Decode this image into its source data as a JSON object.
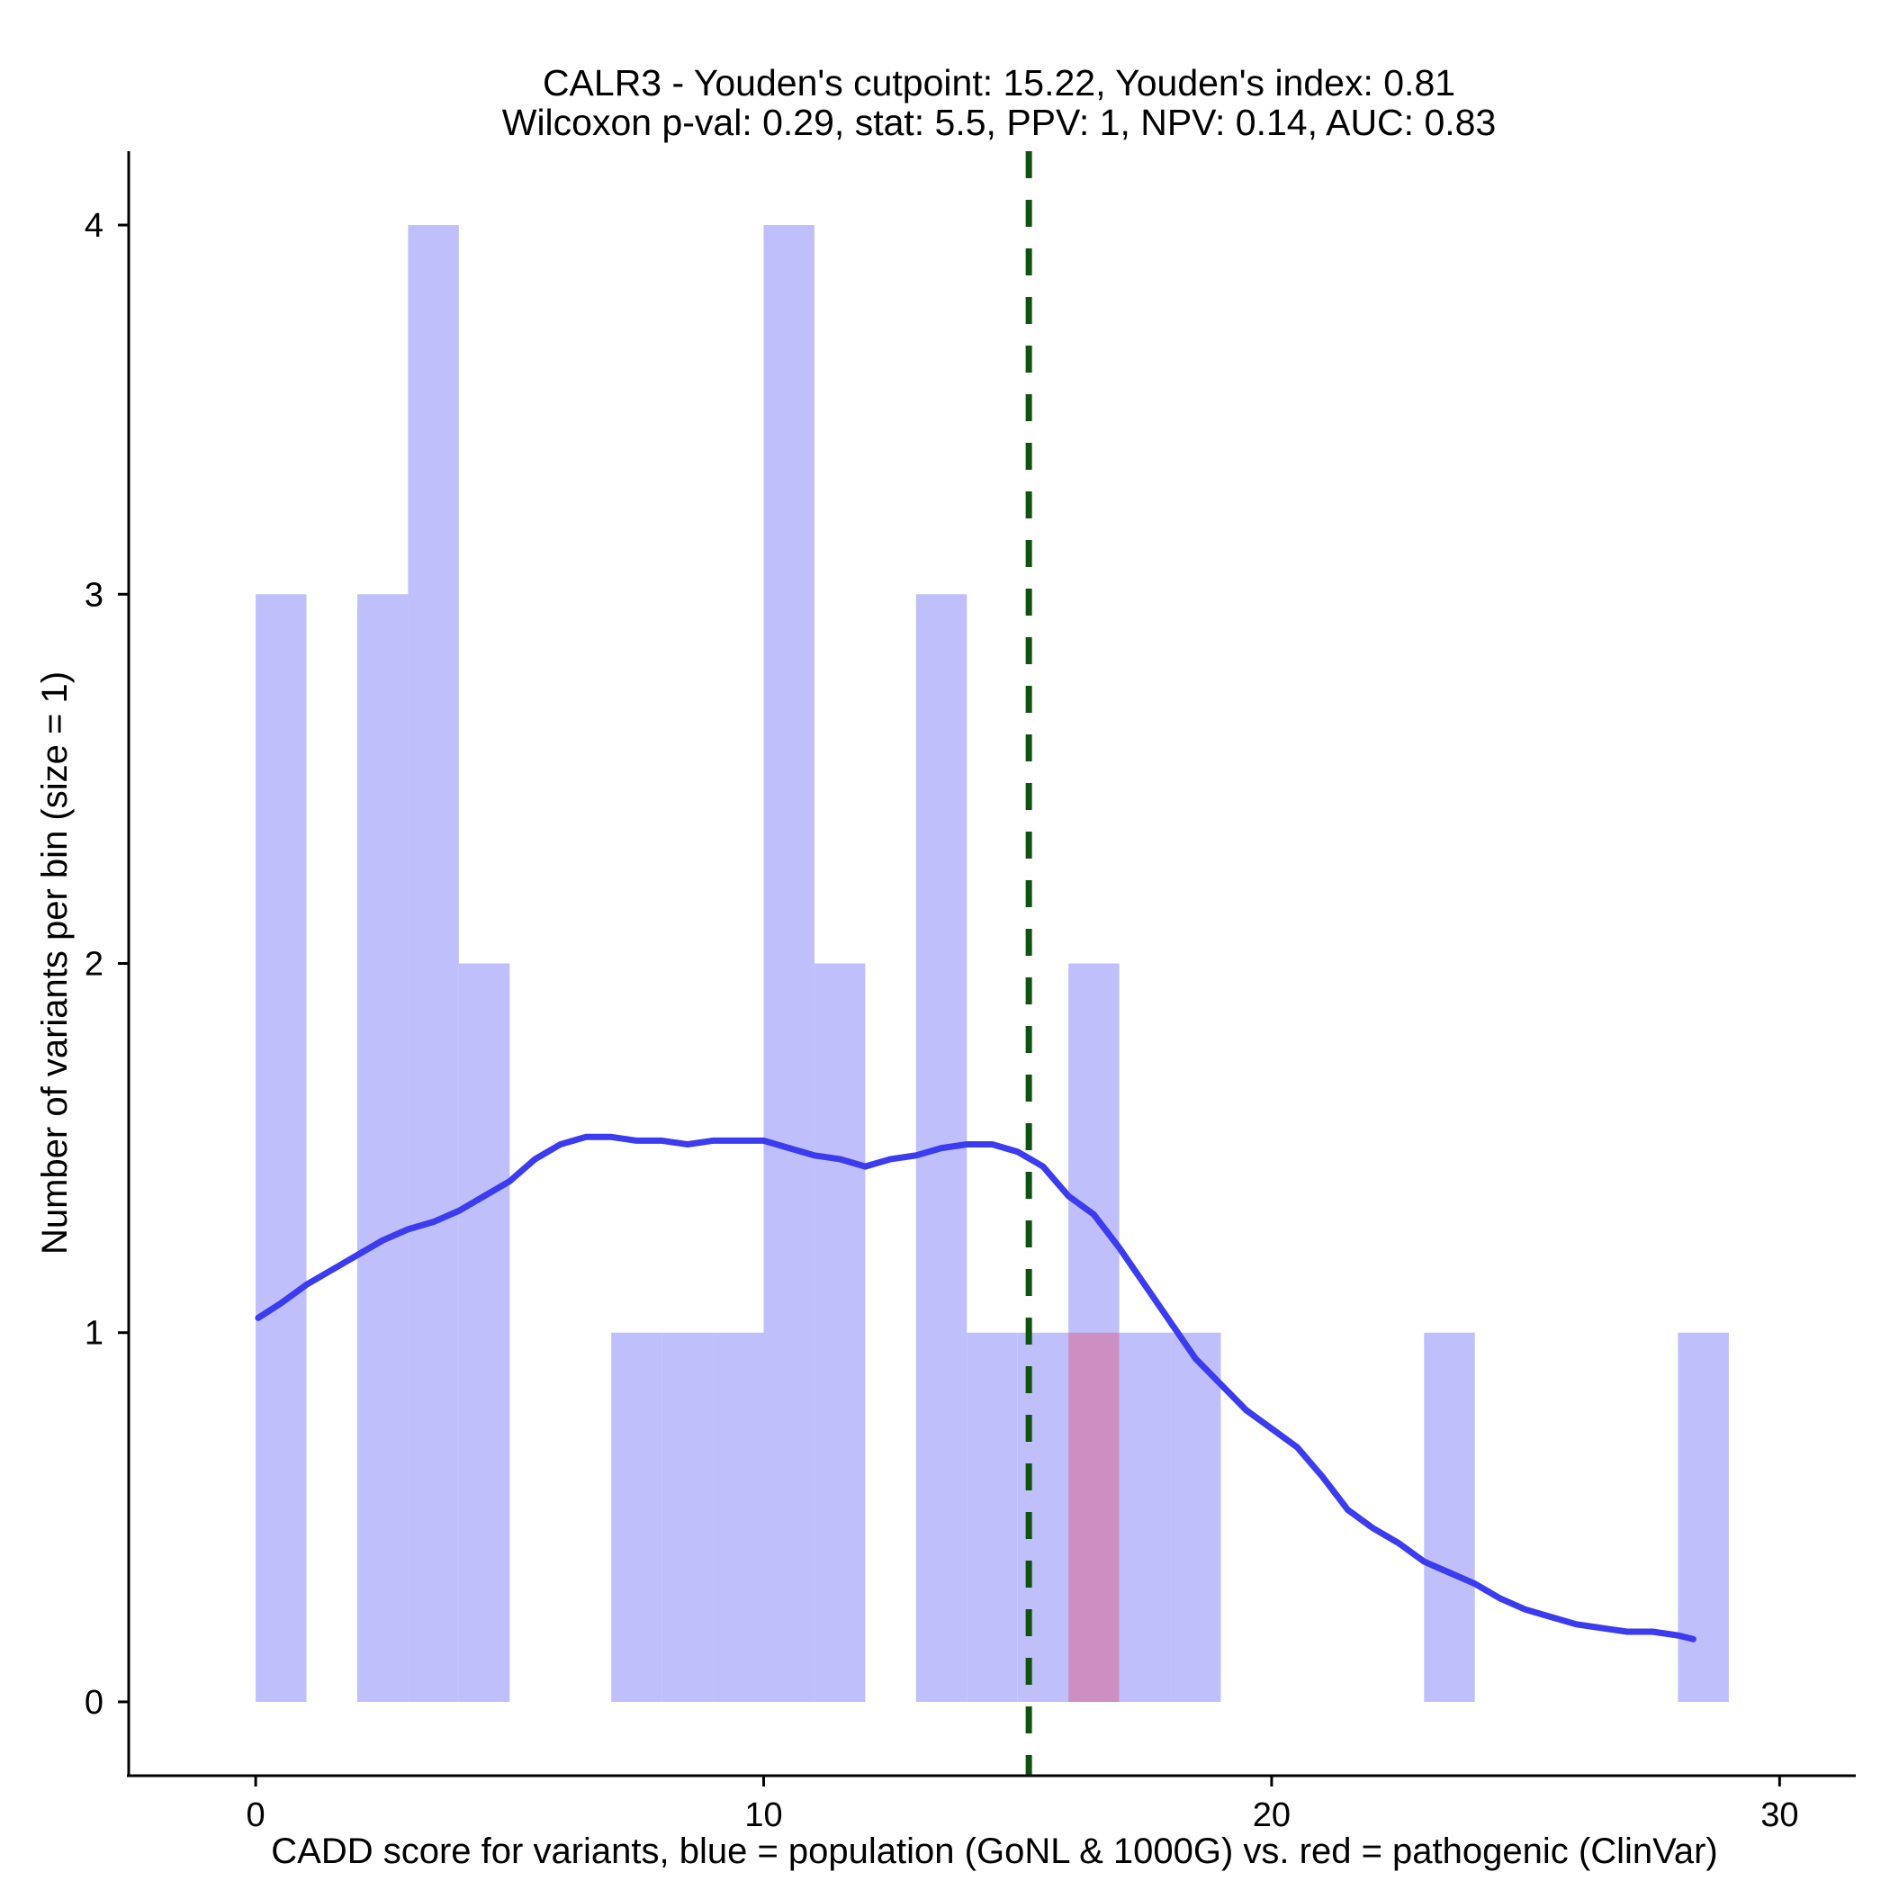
{
  "chart_data": {
    "type": "bar",
    "title_lines": [
      "CALR3 - Youden's cutpoint: 15.22, Youden's index: 0.81",
      "Wilcoxon p-val: 0.29, stat: 5.5, PPV: 1, NPV: 0.14, AUC: 0.83"
    ],
    "xlabel": "CADD score for variants, blue = population (GoNL & 1000G) vs. red = pathogenic (ClinVar)",
    "ylabel": "Number of variants per bin (size = 1)",
    "xlim": [
      -2.5,
      31.5
    ],
    "ylim": [
      -0.2,
      4.2
    ],
    "xticks": [
      0,
      10,
      20,
      30
    ],
    "yticks": [
      0,
      1,
      2,
      3,
      4
    ],
    "bin_size": 1,
    "series": [
      {
        "name": "population (GoNL & 1000G)",
        "color": "#bfbffb",
        "bins": [
          {
            "x0": 0,
            "x1": 1,
            "count": 3
          },
          {
            "x0": 2,
            "x1": 3,
            "count": 3
          },
          {
            "x0": 3,
            "x1": 4,
            "count": 4
          },
          {
            "x0": 4,
            "x1": 5,
            "count": 2
          },
          {
            "x0": 7,
            "x1": 8,
            "count": 1
          },
          {
            "x0": 8,
            "x1": 9,
            "count": 1
          },
          {
            "x0": 9,
            "x1": 10,
            "count": 1
          },
          {
            "x0": 10,
            "x1": 11,
            "count": 4
          },
          {
            "x0": 11,
            "x1": 12,
            "count": 2
          },
          {
            "x0": 13,
            "x1": 14,
            "count": 3
          },
          {
            "x0": 14,
            "x1": 15,
            "count": 1
          },
          {
            "x0": 15,
            "x1": 16,
            "count": 1
          },
          {
            "x0": 16,
            "x1": 17,
            "count": 2
          },
          {
            "x0": 17,
            "x1": 18,
            "count": 1
          },
          {
            "x0": 18,
            "x1": 19,
            "count": 1
          },
          {
            "x0": 23,
            "x1": 24,
            "count": 1
          },
          {
            "x0": 28,
            "x1": 29,
            "count": 1
          }
        ]
      },
      {
        "name": "pathogenic (ClinVar)",
        "color": "#cd8fc1",
        "bins": [
          {
            "x0": 16,
            "x1": 17,
            "count": 1
          }
        ]
      }
    ],
    "density_curve": {
      "color": "#3b3bf0",
      "points": [
        [
          0.05,
          1.04
        ],
        [
          0.5,
          1.08
        ],
        [
          1.0,
          1.13
        ],
        [
          1.5,
          1.17
        ],
        [
          2.0,
          1.21
        ],
        [
          2.5,
          1.25
        ],
        [
          3.0,
          1.28
        ],
        [
          3.5,
          1.3
        ],
        [
          4.0,
          1.33
        ],
        [
          4.5,
          1.37
        ],
        [
          5.0,
          1.41
        ],
        [
          5.5,
          1.47
        ],
        [
          6.0,
          1.51
        ],
        [
          6.5,
          1.53
        ],
        [
          7.0,
          1.53
        ],
        [
          7.5,
          1.52
        ],
        [
          8.0,
          1.52
        ],
        [
          8.5,
          1.51
        ],
        [
          9.0,
          1.52
        ],
        [
          9.5,
          1.52
        ],
        [
          10.0,
          1.52
        ],
        [
          10.5,
          1.5
        ],
        [
          11.0,
          1.48
        ],
        [
          11.5,
          1.47
        ],
        [
          12.0,
          1.45
        ],
        [
          12.5,
          1.47
        ],
        [
          13.0,
          1.48
        ],
        [
          13.5,
          1.5
        ],
        [
          14.0,
          1.51
        ],
        [
          14.5,
          1.51
        ],
        [
          15.0,
          1.49
        ],
        [
          15.5,
          1.45
        ],
        [
          16.0,
          1.37
        ],
        [
          16.5,
          1.32
        ],
        [
          17.0,
          1.23
        ],
        [
          17.5,
          1.13
        ],
        [
          18.0,
          1.03
        ],
        [
          18.5,
          0.93
        ],
        [
          19.0,
          0.86
        ],
        [
          19.5,
          0.79
        ],
        [
          20.0,
          0.74
        ],
        [
          20.5,
          0.69
        ],
        [
          21.0,
          0.61
        ],
        [
          21.5,
          0.52
        ],
        [
          22.0,
          0.47
        ],
        [
          22.5,
          0.43
        ],
        [
          23.0,
          0.38
        ],
        [
          23.5,
          0.35
        ],
        [
          24.0,
          0.32
        ],
        [
          24.5,
          0.28
        ],
        [
          25.0,
          0.25
        ],
        [
          25.5,
          0.23
        ],
        [
          26.0,
          0.21
        ],
        [
          26.5,
          0.2
        ],
        [
          27.0,
          0.19
        ],
        [
          27.5,
          0.19
        ],
        [
          28.0,
          0.18
        ],
        [
          28.3,
          0.17
        ]
      ]
    },
    "cutpoint": {
      "x": 15.22,
      "color": "#0f530f",
      "style": "dashed"
    },
    "grid": false,
    "legend": "none"
  }
}
